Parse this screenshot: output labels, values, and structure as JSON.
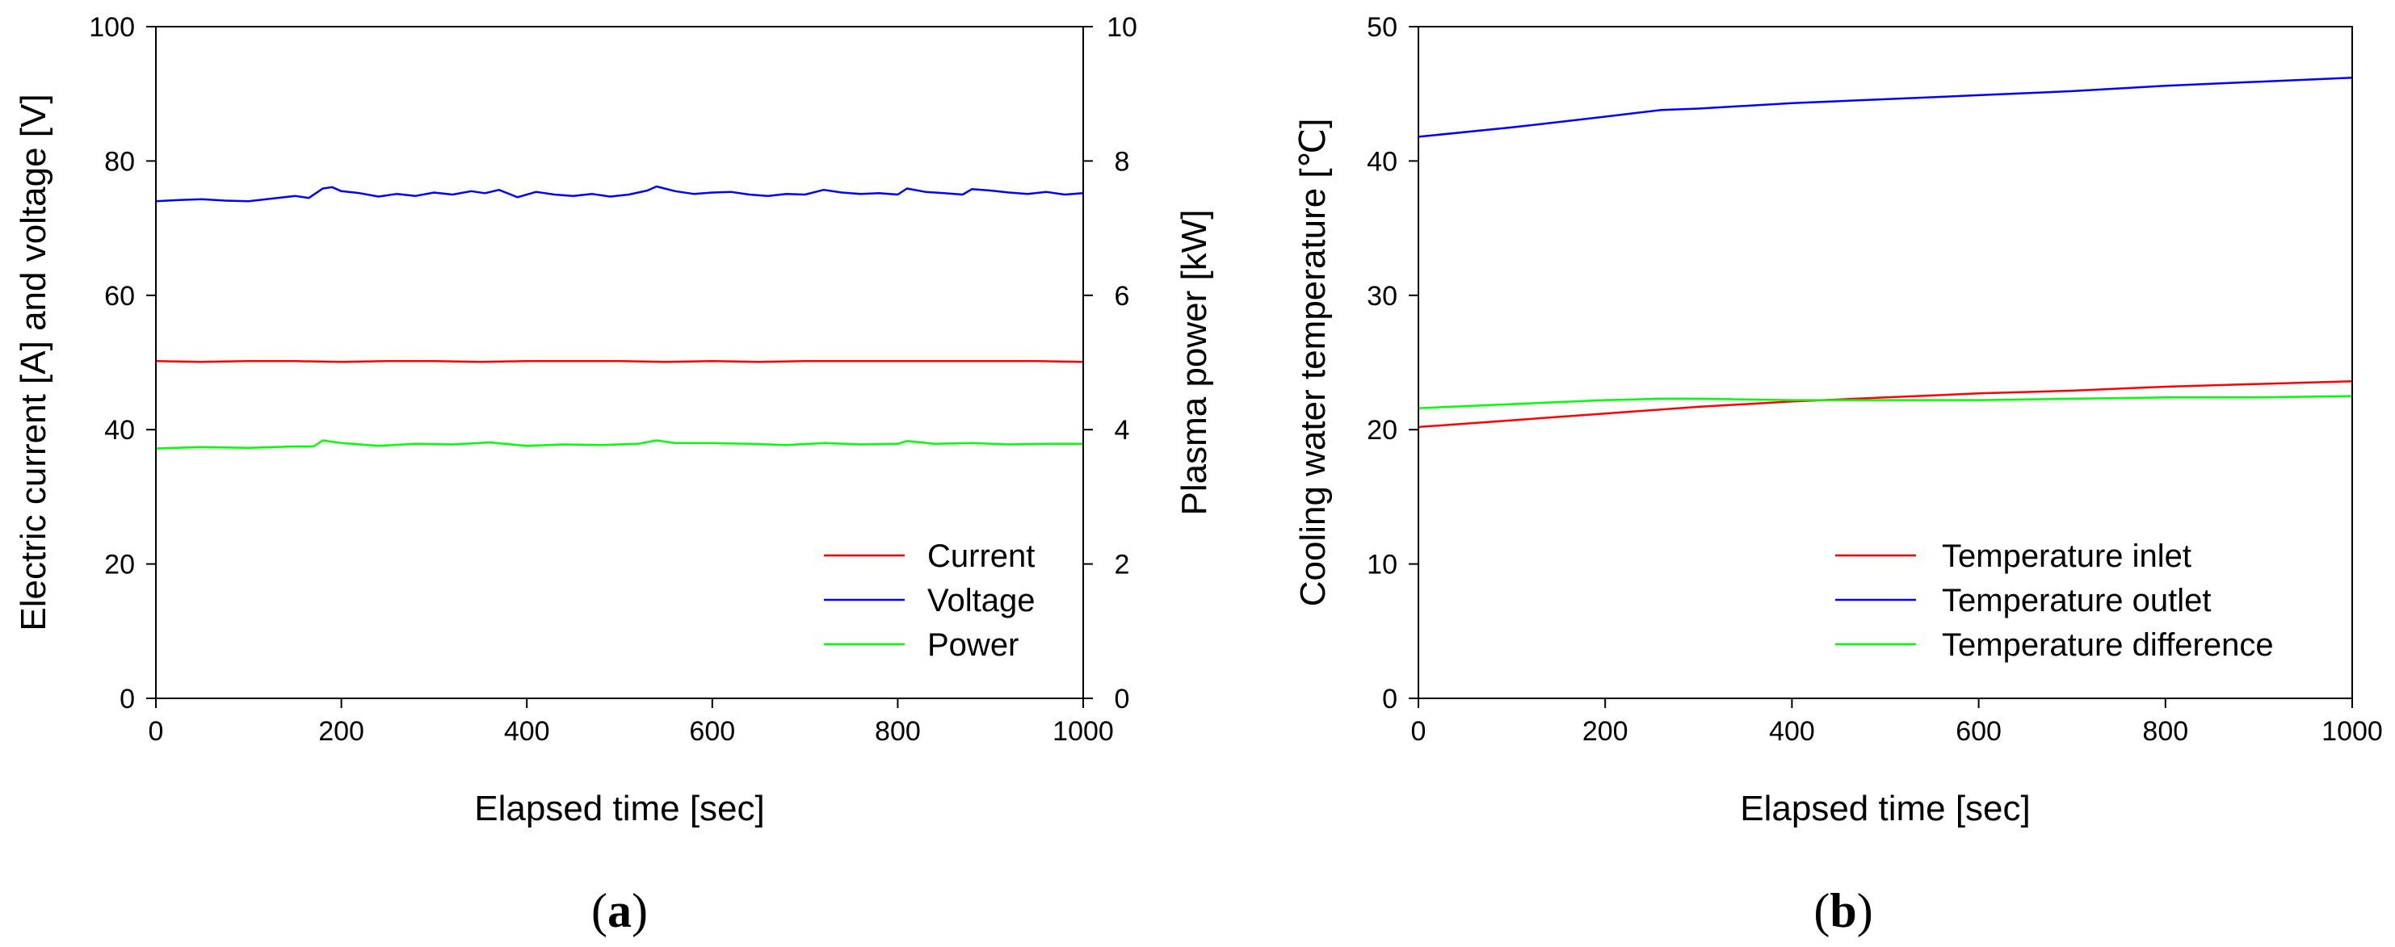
{
  "chart_data": [
    {
      "panel": "a",
      "panel_label": "a",
      "type": "line",
      "xlabel": "Elapsed time [sec]",
      "ylabel": "Electric current [A] and voltage [V]",
      "y2label": "Plasma power [kW]",
      "xlim": [
        0,
        1000
      ],
      "ylim": [
        0,
        100
      ],
      "y2lim": [
        0,
        10
      ],
      "xticks": [
        "0",
        "200",
        "400",
        "600",
        "800",
        "1000"
      ],
      "yticks": [
        "0",
        "20",
        "40",
        "60",
        "80",
        "100"
      ],
      "y2ticks": [
        "0",
        "2",
        "4",
        "6",
        "8",
        "10"
      ],
      "legend_position": "bottom-right",
      "series": [
        {
          "name": "Current",
          "color": "#ff0000",
          "axis": "left",
          "x": [
            0,
            50,
            100,
            150,
            200,
            250,
            300,
            350,
            400,
            450,
            500,
            550,
            600,
            650,
            700,
            750,
            800,
            850,
            900,
            950,
            1000
          ],
          "y": [
            50.2,
            50.1,
            50.2,
            50.2,
            50.1,
            50.2,
            50.2,
            50.1,
            50.2,
            50.2,
            50.2,
            50.1,
            50.2,
            50.1,
            50.2,
            50.2,
            50.2,
            50.2,
            50.2,
            50.2,
            50.1
          ]
        },
        {
          "name": "Voltage",
          "color": "#0000ff",
          "axis": "left",
          "x": [
            0,
            25,
            50,
            75,
            100,
            125,
            150,
            165,
            180,
            190,
            200,
            220,
            240,
            260,
            280,
            300,
            320,
            340,
            355,
            370,
            390,
            410,
            430,
            450,
            470,
            490,
            510,
            530,
            540,
            560,
            580,
            600,
            620,
            640,
            660,
            680,
            700,
            720,
            740,
            760,
            780,
            800,
            810,
            830,
            850,
            870,
            880,
            900,
            920,
            940,
            960,
            980,
            1000
          ],
          "y": [
            74.0,
            74.2,
            74.3,
            74.1,
            74.0,
            74.4,
            74.8,
            74.5,
            75.9,
            76.1,
            75.5,
            75.2,
            74.7,
            75.1,
            74.8,
            75.3,
            75.0,
            75.5,
            75.2,
            75.7,
            74.6,
            75.4,
            75.0,
            74.8,
            75.1,
            74.7,
            75.0,
            75.6,
            76.2,
            75.5,
            75.1,
            75.3,
            75.4,
            75.0,
            74.8,
            75.1,
            75.0,
            75.7,
            75.3,
            75.1,
            75.2,
            75.0,
            75.9,
            75.4,
            75.2,
            75.0,
            75.8,
            75.6,
            75.3,
            75.1,
            75.4,
            75.0,
            75.2
          ]
        },
        {
          "name": "Power",
          "color": "#00ff00",
          "axis": "right",
          "x": [
            0,
            50,
            100,
            150,
            170,
            180,
            200,
            240,
            280,
            320,
            360,
            400,
            440,
            480,
            520,
            540,
            560,
            600,
            640,
            680,
            720,
            760,
            800,
            810,
            840,
            880,
            920,
            960,
            1000
          ],
          "y": [
            3.72,
            3.74,
            3.73,
            3.75,
            3.75,
            3.84,
            3.8,
            3.76,
            3.79,
            3.78,
            3.81,
            3.76,
            3.78,
            3.77,
            3.79,
            3.84,
            3.8,
            3.8,
            3.79,
            3.77,
            3.8,
            3.78,
            3.79,
            3.83,
            3.79,
            3.8,
            3.78,
            3.79,
            3.79
          ]
        }
      ]
    },
    {
      "panel": "b",
      "panel_label": "b",
      "type": "line",
      "xlabel": "Elapsed time [sec]",
      "ylabel": "Cooling water temperature [℃]",
      "xlim": [
        0,
        1000
      ],
      "ylim": [
        0,
        50
      ],
      "xticks": [
        "0",
        "200",
        "400",
        "600",
        "800",
        "1000"
      ],
      "yticks": [
        "0",
        "10",
        "20",
        "30",
        "40",
        "50"
      ],
      "legend_position": "bottom-right",
      "series": [
        {
          "name": "Temperature inlet",
          "color": "#ff0000",
          "x": [
            0,
            100,
            200,
            260,
            300,
            400,
            500,
            600,
            700,
            800,
            900,
            1000
          ],
          "y": [
            20.2,
            20.7,
            21.2,
            21.5,
            21.7,
            22.1,
            22.4,
            22.7,
            22.9,
            23.2,
            23.4,
            23.6
          ]
        },
        {
          "name": "Temperature outlet",
          "color": "#0000ff",
          "x": [
            0,
            100,
            200,
            260,
            300,
            400,
            500,
            600,
            700,
            800,
            900,
            1000
          ],
          "y": [
            41.8,
            42.5,
            43.3,
            43.8,
            43.9,
            44.3,
            44.6,
            44.9,
            45.2,
            45.6,
            45.9,
            46.2
          ]
        },
        {
          "name": "Temperature difference",
          "color": "#00ff00",
          "x": [
            0,
            100,
            200,
            260,
            300,
            400,
            500,
            600,
            700,
            800,
            900,
            1000
          ],
          "y": [
            21.6,
            21.9,
            22.2,
            22.3,
            22.3,
            22.2,
            22.2,
            22.2,
            22.3,
            22.4,
            22.4,
            22.5
          ]
        }
      ]
    }
  ]
}
